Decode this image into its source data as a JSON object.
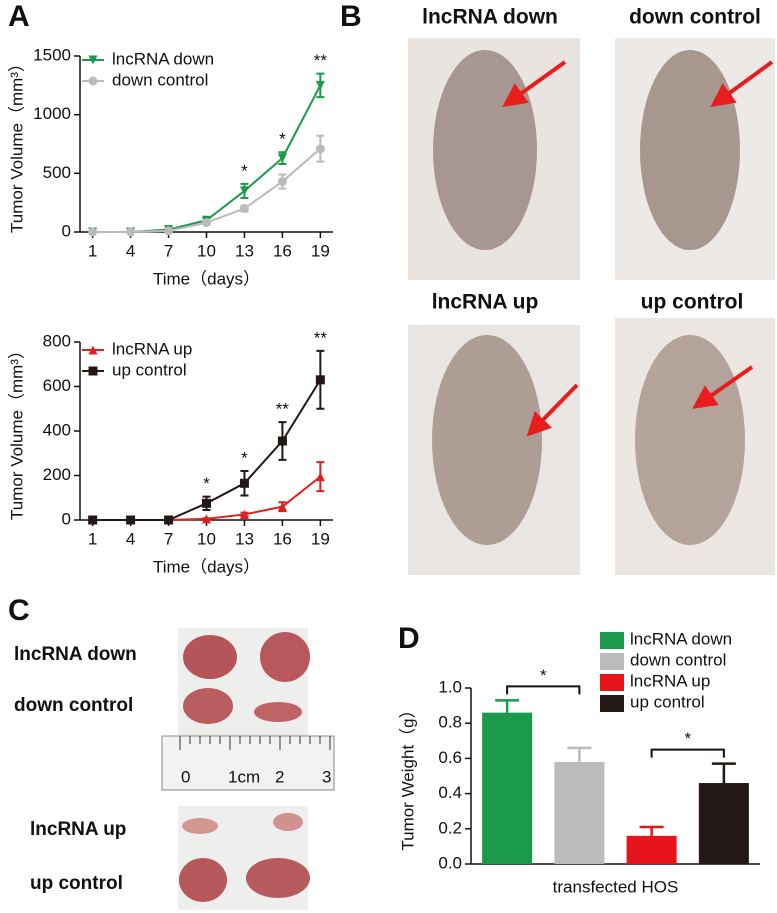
{
  "panel_labels": [
    "A",
    "B",
    "C",
    "D"
  ],
  "chart_data": [
    {
      "type": "line",
      "ylabel": "Tumor Volume（mm³）",
      "xlabel": "Time（days）",
      "x": [
        1,
        4,
        7,
        10,
        13,
        16,
        19
      ],
      "xlim": [
        0,
        20
      ],
      "xticks": [
        1,
        4,
        7,
        10,
        13,
        16,
        19
      ],
      "ylim": [
        0,
        1500
      ],
      "yticks": [
        0,
        500,
        1000,
        1500
      ],
      "series": [
        {
          "name": "lncRNA down",
          "color": "#1a9a4a",
          "marker": "triangle-down",
          "values": [
            0,
            0,
            20,
            100,
            350,
            630,
            1250
          ],
          "errors": [
            0,
            0,
            10,
            20,
            60,
            50,
            100
          ]
        },
        {
          "name": "down control",
          "color": "#bbbbbb",
          "marker": "circle",
          "values": [
            0,
            0,
            10,
            80,
            200,
            430,
            710
          ],
          "errors": [
            0,
            0,
            5,
            15,
            25,
            60,
            110
          ]
        }
      ],
      "annotations": [
        {
          "x": 13,
          "text": "*"
        },
        {
          "x": 16,
          "text": "*"
        },
        {
          "x": 19,
          "text": "**"
        }
      ]
    },
    {
      "type": "line",
      "ylabel": "Tumor Volume（mm³）",
      "xlabel": "Time（days）",
      "x": [
        1,
        4,
        7,
        10,
        13,
        16,
        19
      ],
      "xlim": [
        0,
        20
      ],
      "xticks": [
        1,
        4,
        7,
        10,
        13,
        16,
        19
      ],
      "ylim": [
        0,
        800
      ],
      "yticks": [
        0,
        200,
        400,
        600,
        800
      ],
      "series": [
        {
          "name": "lncRNA up",
          "color": "#e02020",
          "marker": "triangle-up",
          "values": [
            0,
            0,
            0,
            5,
            25,
            60,
            195
          ],
          "errors": [
            0,
            0,
            0,
            3,
            8,
            20,
            65
          ]
        },
        {
          "name": "up control",
          "color": "#231815",
          "marker": "square",
          "values": [
            0,
            0,
            0,
            75,
            165,
            355,
            630
          ],
          "errors": [
            0,
            0,
            0,
            30,
            55,
            85,
            130
          ]
        }
      ],
      "annotations": [
        {
          "x": 10,
          "text": "*"
        },
        {
          "x": 13,
          "text": "*"
        },
        {
          "x": 16,
          "text": "**"
        },
        {
          "x": 19,
          "text": "**"
        }
      ]
    },
    {
      "type": "bar",
      "ylabel": "Tumor Weight（g）",
      "xlabel": "transfected HOS",
      "categories": [
        "lncRNA down",
        "down control",
        "lncRNA up",
        "up control"
      ],
      "values": [
        0.86,
        0.58,
        0.16,
        0.46
      ],
      "errors": [
        0.07,
        0.08,
        0.05,
        0.11
      ],
      "colors": [
        "#1a9a4a",
        "#bbbbbb",
        "#e8141c",
        "#231815"
      ],
      "ylim": [
        0,
        1.0
      ],
      "yticks": [
        {
          "value": 0,
          "label": "0.0"
        },
        0.2,
        0.4,
        0.6,
        0.8,
        {
          "value": 1.0,
          "label": "1.0"
        }
      ],
      "brackets": [
        {
          "from": 0,
          "to": 1,
          "text": "*"
        },
        {
          "from": 2,
          "to": 3,
          "text": "*"
        }
      ]
    }
  ],
  "photos_b": {
    "labels": [
      "lncRNA down",
      "down control",
      "lncRNA up",
      "up control"
    ]
  },
  "photos_c": {
    "labels": [
      "lncRNA down",
      "down control",
      "lncRNA up",
      "up control"
    ],
    "ruler": [
      "0",
      "1cm",
      "2",
      "3"
    ]
  }
}
